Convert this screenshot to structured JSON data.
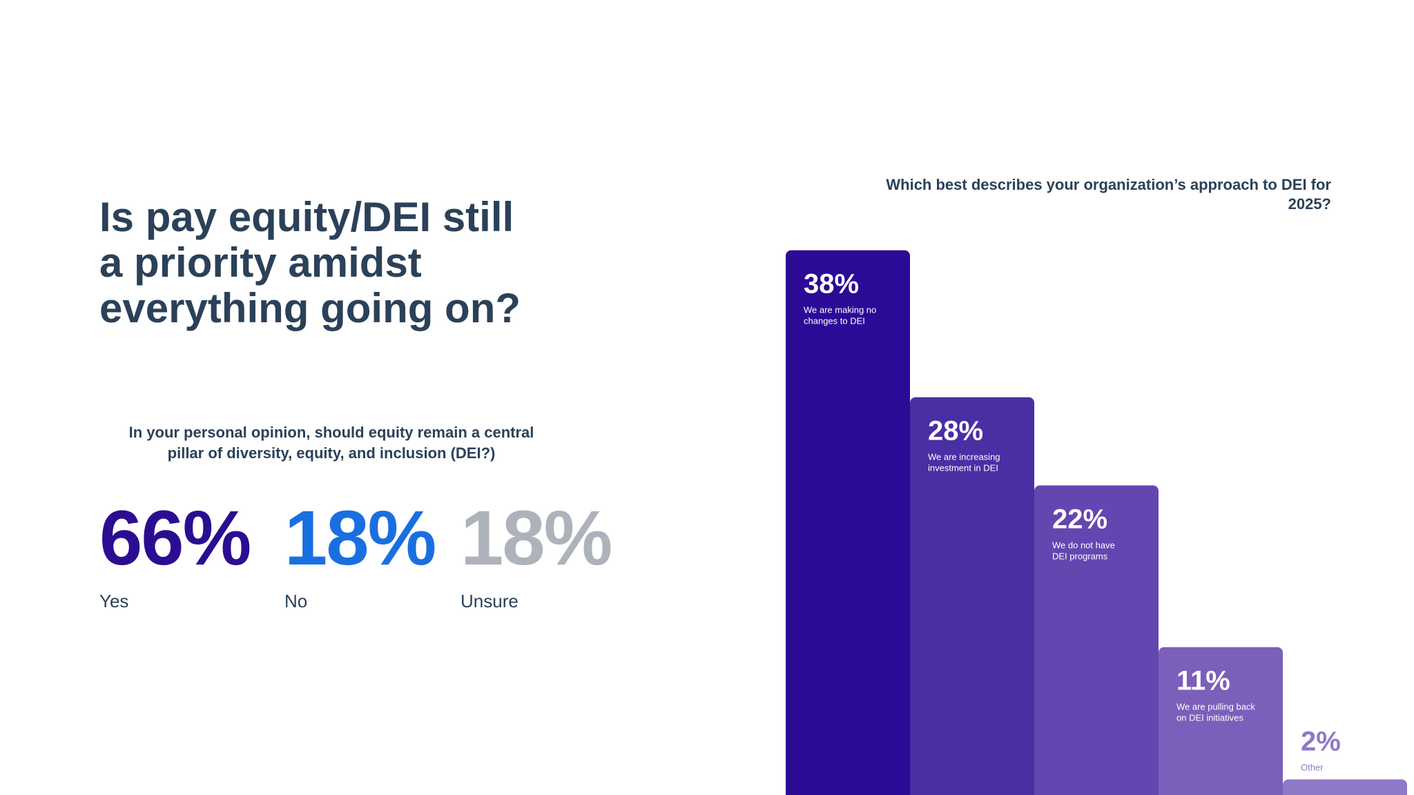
{
  "left_panel": {
    "title": "Is pay equity/DEI still\na priority amidst\neverything going on?",
    "question": "In your personal opinion, should equity remain a central pillar of diversity, equity, and inclusion (DEI?)",
    "stats": [
      {
        "value": "66%",
        "label": "Yes",
        "color": "#2b0d91"
      },
      {
        "value": "18%",
        "label": "No",
        "color": "#1a6fe0"
      },
      {
        "value": "18%",
        "label": "Unsure",
        "color": "#aeb2bb"
      }
    ]
  },
  "chart_data": {
    "type": "bar",
    "title": "Which best describes your organization’s approach to DEI for 2025?",
    "categories": [
      "We are making no changes to DEI",
      "We are increasing investment in DEI",
      "We do not have DEI programs",
      "We are pulling back on DEI initiatives",
      "Other"
    ],
    "category_lines": [
      [
        "We are making no",
        "changes to DEI"
      ],
      [
        "We are increasing",
        "investment in DEI"
      ],
      [
        "We do not have",
        "DEI programs"
      ],
      [
        "We are pulling back",
        "on DEI initiatives"
      ],
      [
        "Other"
      ]
    ],
    "values": [
      38,
      28,
      22,
      11,
      2
    ],
    "value_labels": [
      "38%",
      "28%",
      "22%",
      "11%",
      "2%"
    ],
    "colors": [
      "#2b0a96",
      "#4a2ea4",
      "#6446b0",
      "#7b5fba",
      "#8e78c8"
    ],
    "xlabel": "",
    "ylabel": "",
    "grid": false
  }
}
